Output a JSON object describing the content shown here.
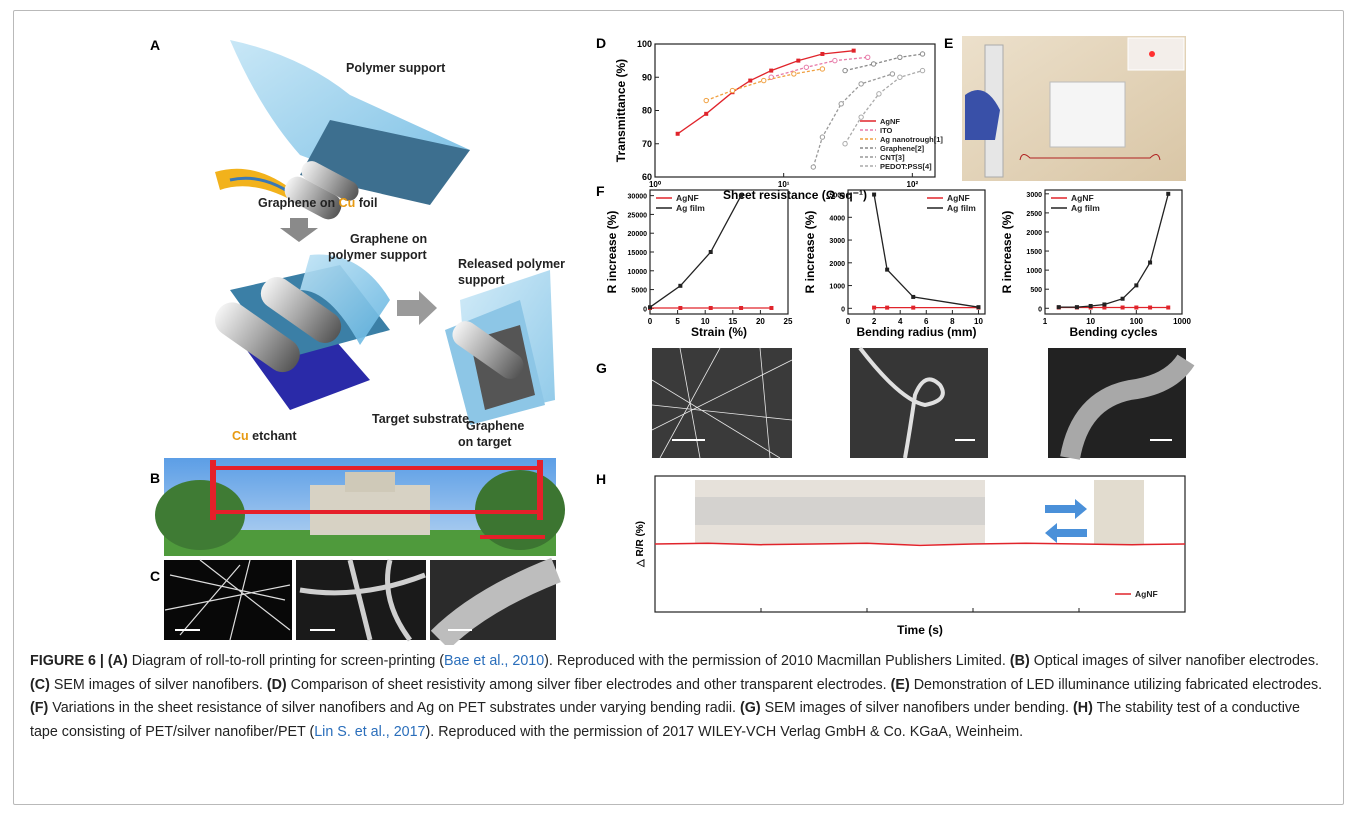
{
  "panel_labels": [
    "A",
    "B",
    "C",
    "D",
    "E",
    "F",
    "G",
    "H"
  ],
  "diagram_a": {
    "polymer_support": "Polymer support",
    "graphene_on_cu": [
      "Graphene on ",
      "Cu",
      " foil"
    ],
    "graphene_on_polymer": [
      "Graphene on",
      "polymer support"
    ],
    "released_polymer": [
      "Released polymer",
      "support"
    ],
    "cu_etchant": [
      "Cu",
      " etchant"
    ],
    "target_substrate": "Target substrate",
    "graphene_on_target": [
      "Graphene",
      "on target"
    ]
  },
  "chart_data": [
    {
      "type": "line",
      "x_label": "Sheet resistance (Ω sq⁻¹)",
      "y_label": "Transmittance (%)",
      "xlog": true,
      "xlim": [
        1,
        150
      ],
      "xticks": [
        {
          "value": 1,
          "label": "10⁰"
        },
        {
          "value": 10,
          "label": "10¹"
        },
        {
          "value": 100,
          "label": "10²"
        }
      ],
      "ylim": [
        60,
        100
      ],
      "yticks": [
        60,
        70,
        80,
        90,
        100
      ],
      "legend": "lower right",
      "series": [
        {
          "name": "AgNF",
          "color": "#e0242b",
          "line_style": "solid",
          "x": [
            1.5,
            2.5,
            4,
            5.5,
            8,
            13,
            20,
            35
          ],
          "values": [
            73,
            79,
            85.5,
            89,
            92,
            95,
            97,
            98
          ]
        },
        {
          "name": "ITO",
          "color": "#e77aa8",
          "line_style": "dashed",
          "x": [
            8,
            15,
            25,
            45
          ],
          "values": [
            90,
            93,
            95,
            96
          ]
        },
        {
          "name": "Ag nanotrough[1]",
          "color": "#f0a040",
          "line_style": "dashed",
          "x": [
            2.5,
            4,
            7,
            12,
            20
          ],
          "values": [
            83,
            86,
            89,
            91,
            92.5
          ]
        },
        {
          "name": "Graphene[2]",
          "color": "#888888",
          "line_style": "dashed",
          "x": [
            30,
            50,
            80,
            120
          ],
          "values": [
            92,
            94,
            96,
            97
          ]
        },
        {
          "name": "CNT[3]",
          "color": "#999999",
          "line_style": "dashed",
          "x": [
            17,
            20,
            28,
            40,
            70
          ],
          "values": [
            63,
            72,
            82,
            88,
            91
          ]
        },
        {
          "name": "PEDOT:PSS[4]",
          "color": "#aaaaaa",
          "line_style": "dashed",
          "x": [
            30,
            40,
            55,
            80,
            120
          ],
          "values": [
            70,
            78,
            85,
            90,
            92
          ]
        }
      ]
    },
    {
      "type": "line",
      "x_label": "Strain (%)",
      "y_label": "R increase (%)",
      "xlim": [
        0,
        25
      ],
      "xticks": [
        0,
        5,
        10,
        15,
        20,
        25
      ],
      "ylim": [
        -1500,
        31500
      ],
      "yticks": [
        0,
        5000,
        10000,
        15000,
        20000,
        25000,
        30000
      ],
      "legend": "upper left",
      "series": [
        {
          "name": "AgNF",
          "color": "#e0242b",
          "line_style": "solid",
          "x": [
            0,
            5.5,
            11,
            16.5,
            22
          ],
          "values": [
            100,
            100,
            100,
            100,
            100
          ]
        },
        {
          "name": "Ag film",
          "color": "#222222",
          "line_style": "solid",
          "x": [
            0,
            5.5,
            11,
            16.5
          ],
          "values": [
            300,
            6000,
            15000,
            30000
          ]
        }
      ]
    },
    {
      "type": "line",
      "x_label": "Bending radius (mm)",
      "y_label": "R increase (%)",
      "xlim": [
        0,
        10.5
      ],
      "xticks": [
        0,
        2,
        4,
        6,
        8,
        10
      ],
      "ylim": [
        -250,
        5200
      ],
      "yticks": [
        0,
        1000,
        2000,
        3000,
        4000,
        5000
      ],
      "legend": "upper right",
      "series": [
        {
          "name": "AgNF",
          "color": "#e0242b",
          "line_style": "solid",
          "x": [
            2,
            3,
            5,
            10
          ],
          "values": [
            30,
            30,
            30,
            30
          ]
        },
        {
          "name": "Ag film",
          "color": "#222222",
          "line_style": "solid",
          "x": [
            2,
            3,
            5,
            10
          ],
          "values": [
            5000,
            1700,
            500,
            50
          ]
        }
      ]
    },
    {
      "type": "line",
      "x_label": "Bending cycles",
      "y_label": "R increase (%)",
      "xlog": true,
      "xlim": [
        1,
        1000
      ],
      "xticks": [
        1,
        10,
        100,
        1000
      ],
      "ylim": [
        -150,
        3100
      ],
      "yticks": [
        0,
        500,
        1000,
        1500,
        2000,
        2500,
        3000
      ],
      "legend": "upper left",
      "series": [
        {
          "name": "AgNF",
          "color": "#e0242b",
          "line_style": "solid",
          "x": [
            2,
            5,
            10,
            20,
            50,
            100,
            200,
            500
          ],
          "values": [
            20,
            20,
            20,
            20,
            20,
            20,
            20,
            20
          ]
        },
        {
          "name": "Ag film",
          "color": "#222222",
          "line_style": "solid",
          "x": [
            2,
            5,
            10,
            20,
            50,
            100,
            200,
            500
          ],
          "values": [
            30,
            30,
            60,
            100,
            250,
            600,
            1200,
            3000
          ]
        }
      ]
    },
    {
      "type": "line",
      "x_label": "Time (s)",
      "y_label": "△ R/R (%)",
      "xlim": [
        0,
        10
      ],
      "ylim": [
        -1,
        1
      ],
      "legend": "lower right",
      "series": [
        {
          "name": "AgNF",
          "color": "#e0242b",
          "line_style": "solid",
          "x": [
            0,
            1,
            2,
            3,
            4,
            5,
            6,
            7,
            8,
            9,
            10
          ],
          "values": [
            0,
            0.01,
            -0.01,
            0,
            0.01,
            -0.02,
            0,
            0.01,
            0,
            -0.01,
            0
          ]
        }
      ]
    }
  ],
  "caption": {
    "figure": "FIGURE 6 |",
    "items": [
      {
        "label": "(A)",
        "text": "Diagram of roll-to-roll printing for screen-printing (",
        "cite": "Bae et al., 2010",
        "after": "). Reproduced with the permission of 2010 Macmillan Publishers Limited."
      },
      {
        "label": "(B)",
        "text": "Optical images of silver nanofiber electrodes."
      },
      {
        "label": "(C)",
        "text": "SEM images of silver nanofibers."
      },
      {
        "label": "(D)",
        "text": "Comparison of sheet resistivity among silver fiber electrodes and other transparent electrodes."
      },
      {
        "label": "(E)",
        "text": "Demonstration of LED illuminance utilizing fabricated electrodes."
      },
      {
        "label": "(F)",
        "text": "Variations in the sheet resistance of silver nanofibers and Ag on PET substrates under varying bending radii."
      },
      {
        "label": "(G)",
        "text": "SEM images of silver nanofibers under bending."
      },
      {
        "label": "(H)",
        "text": "The stability test of a conductive tape consisting of PET/silver nanofiber/PET (",
        "cite": "Lin S. et al., 2017",
        "after": "). Reproduced with the permission of 2017 WILEY-VCH Verlag GmbH & Co. KGaA, Weinheim."
      }
    ]
  }
}
